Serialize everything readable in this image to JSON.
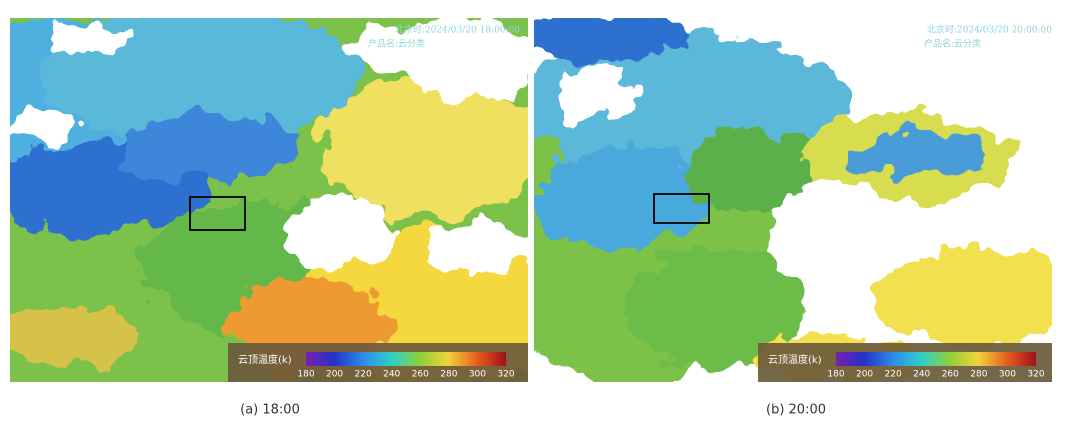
{
  "panels": [
    {
      "timestamp": "北京时:2024/03/20 18:00:00",
      "product": "产品名:云分类",
      "colorbar": {
        "title": "云顶温度(k)",
        "ticks": [
          180,
          200,
          220,
          240,
          260,
          280,
          300,
          320
        ]
      },
      "caption": "(a) 18:00"
    },
    {
      "timestamp": "北京时:2024/03/20 20:00:00",
      "product": "产品名:云分类",
      "colorbar": {
        "title": "云顶温度(k)",
        "ticks": [
          180,
          200,
          220,
          240,
          260,
          280,
          300,
          320
        ]
      },
      "caption": "(b) 20:00"
    }
  ]
}
